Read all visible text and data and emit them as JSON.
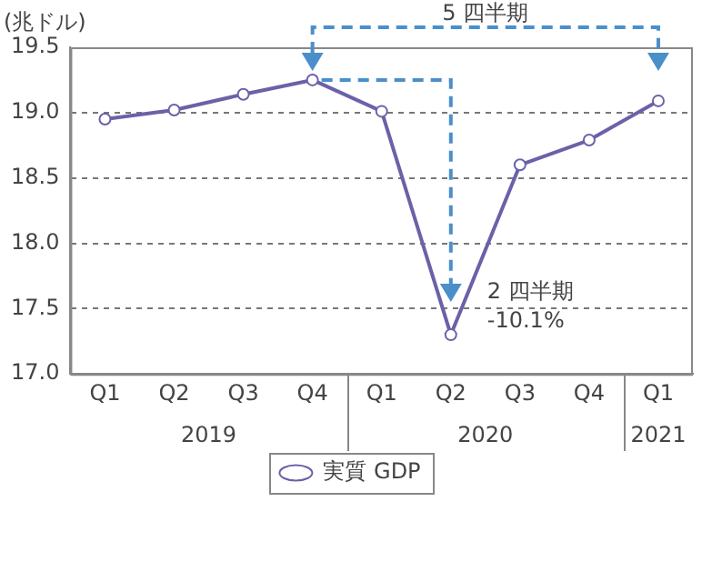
{
  "chart_data": {
    "type": "line",
    "ylabel": "(兆ドル)",
    "categories": [
      "Q1",
      "Q2",
      "Q3",
      "Q4",
      "Q1",
      "Q2",
      "Q3",
      "Q4",
      "Q1"
    ],
    "series": [
      {
        "name": "実質 GDP",
        "color": "#6a62a8",
        "values": [
          18.95,
          19.02,
          19.14,
          19.25,
          19.01,
          17.3,
          18.6,
          18.79,
          19.09
        ]
      }
    ],
    "ylim": [
      17,
      19.5
    ],
    "yticks": [
      {
        "value": 17,
        "label": "17.0"
      },
      17.5,
      {
        "value": 18,
        "label": "18.0"
      },
      18.5,
      {
        "value": 19,
        "label": "19.0"
      },
      19.5
    ],
    "annotations": [
      "2019",
      "2020",
      "2021",
      "5 四半期",
      "2 四半期\n-10.1%"
    ],
    "grid": "y",
    "legend": "bottom",
    "marker": "circle",
    "line_style": "solid"
  }
}
